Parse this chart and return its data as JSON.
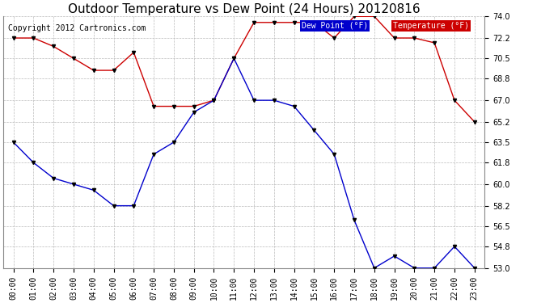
{
  "title": "Outdoor Temperature vs Dew Point (24 Hours) 20120816",
  "copyright": "Copyright 2012 Cartronics.com",
  "background_color": "#ffffff",
  "plot_bg_color": "#ffffff",
  "grid_color": "#bbbbbb",
  "hours": [
    0,
    1,
    2,
    3,
    4,
    5,
    6,
    7,
    8,
    9,
    10,
    11,
    12,
    13,
    14,
    15,
    16,
    17,
    18,
    19,
    20,
    21,
    22,
    23
  ],
  "temperature": [
    72.2,
    72.2,
    71.5,
    70.5,
    69.5,
    69.5,
    71.0,
    66.5,
    66.5,
    66.5,
    67.0,
    70.5,
    73.5,
    73.5,
    73.5,
    73.5,
    72.2,
    74.0,
    74.0,
    72.2,
    72.2,
    71.8,
    67.0,
    65.2
  ],
  "dewpoint": [
    63.5,
    61.8,
    60.5,
    60.0,
    59.5,
    58.2,
    58.2,
    62.5,
    63.5,
    66.0,
    67.0,
    70.5,
    67.0,
    67.0,
    66.5,
    64.5,
    62.5,
    57.0,
    53.0,
    54.0,
    53.0,
    53.0,
    54.8,
    53.0
  ],
  "temp_color": "#cc0000",
  "dew_color": "#0000cc",
  "marker_color": "#000000",
  "ylim_min": 53.0,
  "ylim_max": 74.0,
  "yticks": [
    53.0,
    54.8,
    56.5,
    58.2,
    60.0,
    61.8,
    63.5,
    65.2,
    67.0,
    68.8,
    70.5,
    72.2,
    74.0
  ],
  "legend_dew_bg": "#0000cc",
  "legend_temp_bg": "#cc0000",
  "title_fontsize": 11,
  "tick_fontsize": 7,
  "copyright_fontsize": 7
}
